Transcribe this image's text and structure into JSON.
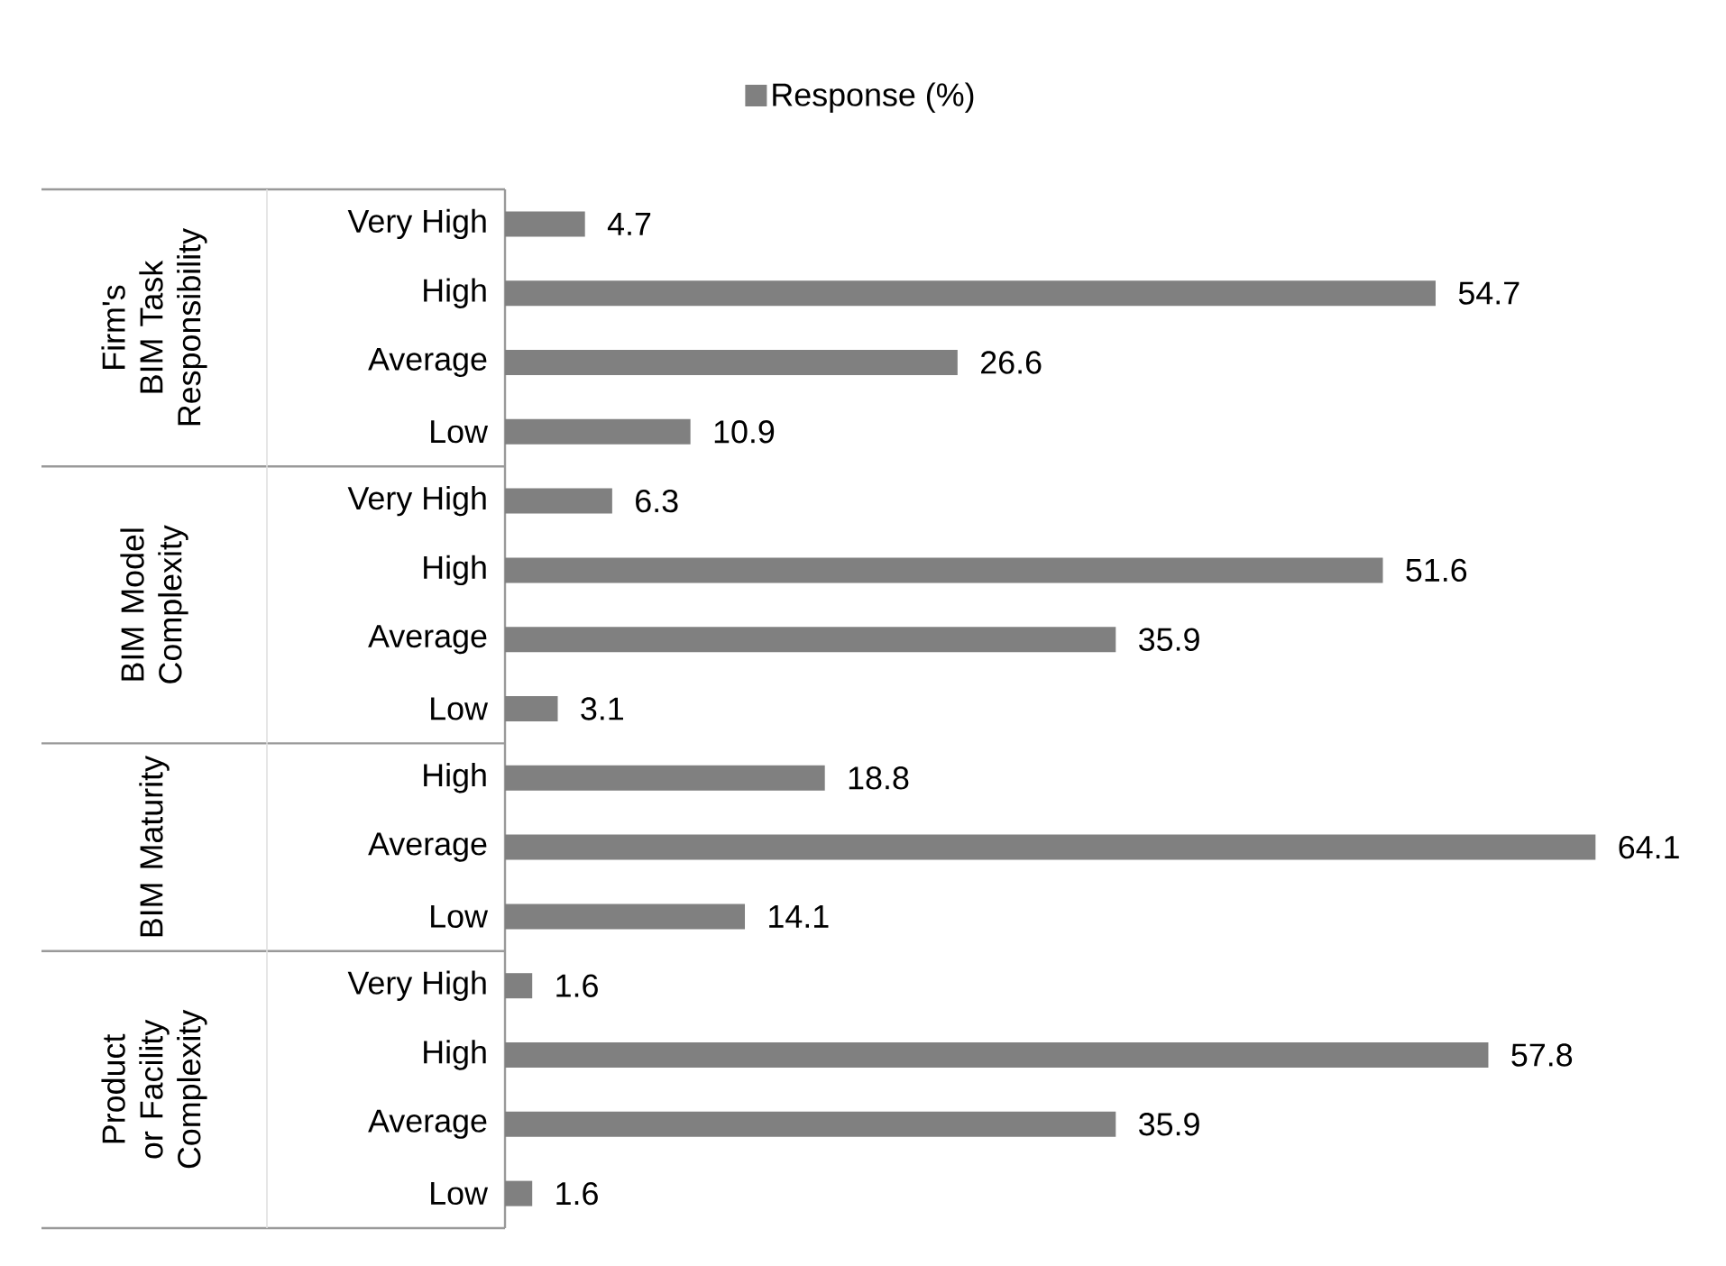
{
  "chart_data": {
    "type": "bar",
    "orientation": "horizontal",
    "categories": [
      "Very High",
      "High",
      "Average",
      "Low",
      "Very High",
      "High",
      "Average",
      "Low",
      "High",
      "Average",
      "Low",
      "Very High",
      "High",
      "Average",
      "Low"
    ],
    "series": [
      {
        "name": "Response (%)",
        "color": "#808080",
        "values": [
          4.7,
          54.7,
          26.6,
          10.9,
          6.3,
          51.6,
          35.9,
          3.1,
          18.8,
          64.1,
          14.1,
          1.6,
          57.8,
          35.9,
          1.6
        ]
      }
    ],
    "data_labels": true,
    "legend": "top",
    "annotations": [
      "Firm's BIM Task Responsibility",
      "BIM Model Complexity",
      "BIM Maturity",
      "Product or Facility Complexity"
    ]
  }
}
